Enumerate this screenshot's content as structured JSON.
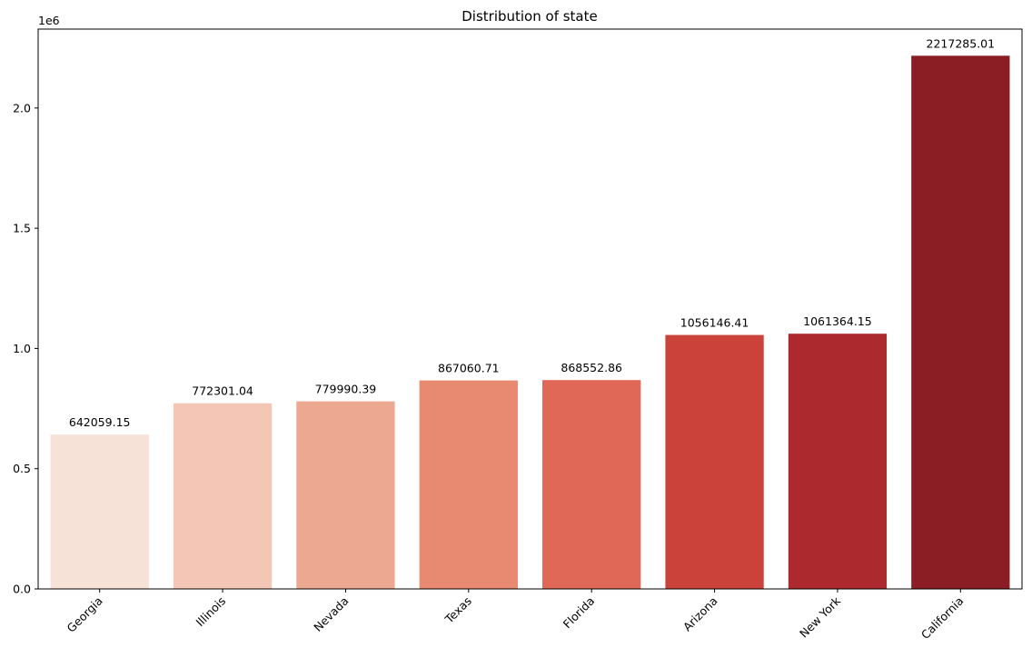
{
  "chart_data": {
    "type": "bar",
    "title": "Distribution of state",
    "xlabel": "",
    "ylabel": "",
    "y_offset_label": "1e6",
    "y_scale": 1000000,
    "categories": [
      "Georgia",
      "Illinois",
      "Nevada",
      "Texas",
      "Florida",
      "Arizona",
      "New York",
      "California"
    ],
    "values": [
      642059.15,
      772301.04,
      779990.39,
      867060.71,
      868552.86,
      1056146.41,
      1061364.15,
      2217285.01
    ],
    "value_labels": [
      "642059.15",
      "772301.04",
      "779990.39",
      "867060.71",
      "868552.86",
      "1056146.41",
      "1061364.15",
      "2217285.01"
    ],
    "colors": [
      "#f7e2d8",
      "#f3c6b5",
      "#eda892",
      "#e88a71",
      "#df6856",
      "#cb423b",
      "#ac2a2e",
      "#8b1e24"
    ],
    "ylim": [
      0,
      2328149.26
    ],
    "yticks": [
      0,
      0.5,
      1.0,
      1.5,
      2.0
    ],
    "ytick_labels": [
      "0.0",
      "0.5",
      "1.0",
      "1.5",
      "2.0"
    ],
    "xtick_rotation": 45,
    "grid": false,
    "legend": "none"
  }
}
